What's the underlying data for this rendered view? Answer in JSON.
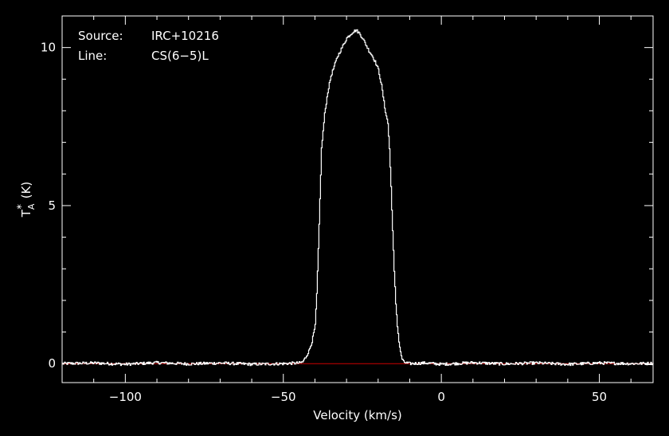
{
  "chart_data": {
    "type": "line",
    "xlabel": "Velocity (km/s)",
    "ylabel": {
      "base": "T",
      "sub": "A",
      "sup": "*",
      "unit": "(K)"
    },
    "xlim": [
      -120,
      67
    ],
    "ylim": [
      -0.6,
      11.0
    ],
    "x_ticks": [
      -100,
      -50,
      0,
      50
    ],
    "x_tick_labels": [
      "−100",
      "−50",
      "0",
      "50"
    ],
    "y_ticks": [
      0,
      5,
      10
    ],
    "y_tick_labels": [
      "0",
      "5",
      "10"
    ],
    "grid": false,
    "annotations": {
      "source_label": "Source:",
      "source_value": "IRC+10216",
      "line_label": "Line:",
      "line_value": "CS(6−5)L"
    },
    "baseline": {
      "y": 0,
      "color": "#cc0000"
    },
    "series": [
      {
        "color": "#ffffff",
        "x": [
          -120,
          -110,
          -100,
          -90,
          -80,
          -70,
          -60,
          -50,
          -45,
          -44,
          -43,
          -42,
          -41,
          -40,
          -39.5,
          -39,
          -38.5,
          -38,
          -37,
          -36,
          -35,
          -34,
          -33,
          -32,
          -31,
          -30,
          -29,
          -28,
          -27,
          -26,
          -25,
          -24,
          -23,
          -22,
          -21,
          -20,
          -19,
          -18,
          -17,
          -16.5,
          -16,
          -15.5,
          -15,
          -14.5,
          -14,
          -13.5,
          -13,
          -12.5,
          -12,
          -11,
          -10,
          -5,
          0,
          10,
          20,
          30,
          40,
          50,
          60,
          67
        ],
        "y": [
          0.0,
          0.02,
          -0.02,
          0.03,
          -0.01,
          0.02,
          -0.02,
          0.0,
          0.02,
          0.05,
          0.2,
          0.4,
          0.7,
          1.2,
          2.2,
          3.6,
          5.2,
          6.8,
          7.9,
          8.6,
          9.1,
          9.4,
          9.7,
          9.9,
          10.1,
          10.3,
          10.4,
          10.5,
          10.55,
          10.45,
          10.3,
          10.1,
          9.9,
          9.75,
          9.55,
          9.3,
          8.8,
          8.1,
          7.6,
          6.8,
          5.6,
          4.2,
          2.9,
          1.9,
          1.2,
          0.7,
          0.35,
          0.15,
          0.05,
          0.02,
          0.0,
          0.02,
          -0.02,
          0.03,
          -0.01,
          0.02,
          -0.02,
          0.02,
          0.0,
          0.01
        ]
      }
    ]
  }
}
